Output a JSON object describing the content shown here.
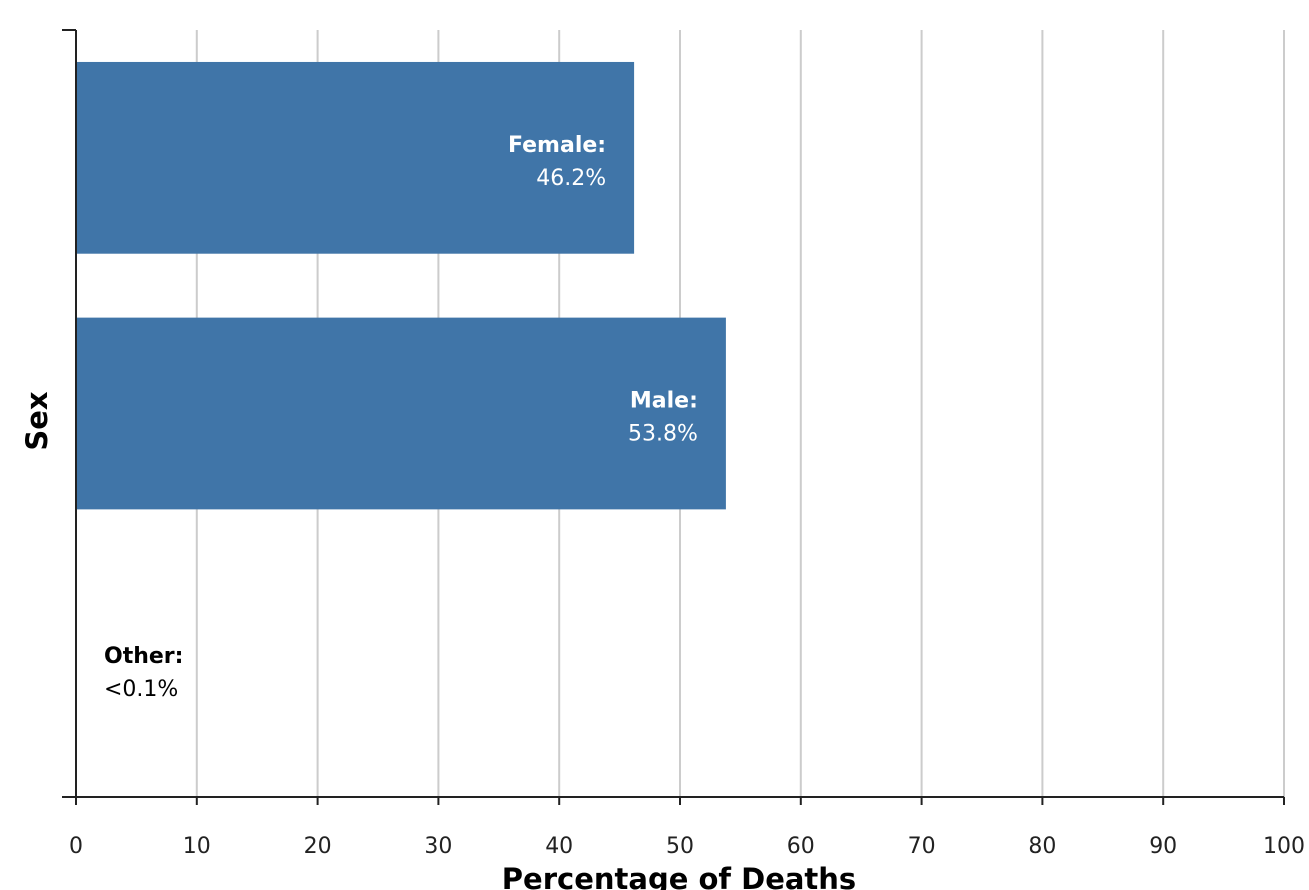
{
  "chart_data": {
    "type": "bar",
    "orientation": "horizontal",
    "xlabel": "Percentage of Deaths",
    "ylabel": "Sex",
    "xlim": [
      0,
      100
    ],
    "x_ticks": [
      "0",
      "10",
      "20",
      "30",
      "40",
      "50",
      "60",
      "70",
      "80",
      "90",
      "100"
    ],
    "grid": "vertical",
    "bar_color": "#4075a8",
    "categories": [
      "Female",
      "Male",
      "Other"
    ],
    "values": [
      46.2,
      53.8,
      0.05
    ],
    "data_labels": [
      {
        "name": "Female:",
        "value": "46.2%"
      },
      {
        "name": "Male:",
        "value": "53.8%"
      },
      {
        "name": "Other:",
        "value": "<0.1%"
      }
    ]
  }
}
